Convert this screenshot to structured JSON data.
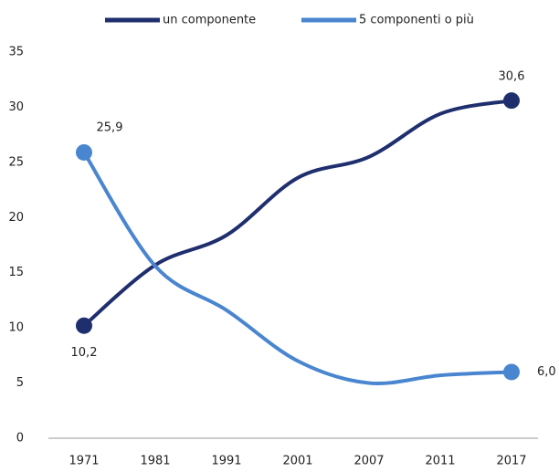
{
  "chart_data": {
    "type": "line",
    "categories": [
      "1971",
      "1981",
      "1991",
      "2001",
      "2007",
      "2011",
      "2017"
    ],
    "series": [
      {
        "name": "un componente",
        "color": "#1f2f6e",
        "values": [
          10.2,
          15.7,
          18.4,
          23.6,
          25.5,
          29.4,
          30.6
        ],
        "value_labels": [
          "10,2",
          null,
          null,
          null,
          null,
          null,
          "30,6"
        ]
      },
      {
        "name": "5 componenti o più",
        "color": "#4a86d0",
        "values": [
          25.9,
          15.6,
          11.6,
          7.0,
          5.0,
          5.7,
          6.0
        ],
        "value_labels": [
          "25,9",
          null,
          null,
          null,
          null,
          null,
          "6,0"
        ]
      }
    ],
    "ylim": [
      0,
      35
    ],
    "yticks": [
      0,
      5,
      10,
      15,
      20,
      25,
      30,
      35
    ],
    "grid": false,
    "legend": "top"
  }
}
